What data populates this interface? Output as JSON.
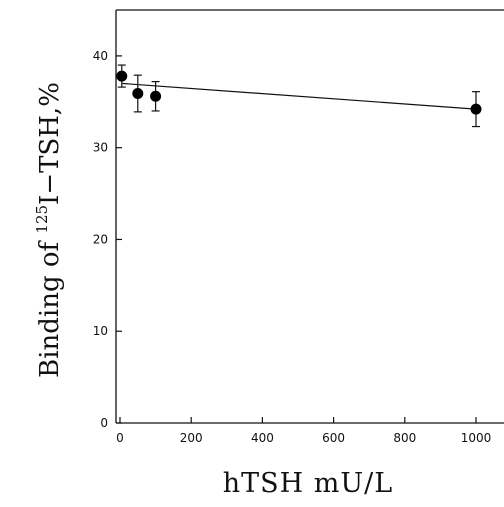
{
  "chart_data": {
    "type": "scatter",
    "title": "",
    "xlabel": "hTSH mU/L",
    "ylabel_prefix": "Binding of ",
    "ylabel_sup": "125",
    "ylabel_main": "I−TSH,%",
    "xlim": [
      0,
      1000
    ],
    "ylim": [
      0,
      45
    ],
    "xticks": [
      0,
      200,
      400,
      600,
      800,
      1000
    ],
    "xtick_labels": [
      "0",
      "200",
      "400",
      "600",
      "800",
      "1000"
    ],
    "yticks": [
      0,
      10,
      20,
      30,
      40
    ],
    "ytick_labels": [
      "0",
      "10",
      "20",
      "30",
      "40"
    ],
    "grid": false,
    "legend": "none",
    "series": [
      {
        "x": [
          5,
          50,
          100,
          1000
        ],
        "y": [
          37.8,
          35.9,
          35.6,
          34.2
        ],
        "err": [
          1.2,
          2.0,
          1.6,
          1.9
        ]
      }
    ],
    "fit_line": {
      "x": [
        5,
        1000
      ],
      "y": [
        37.0,
        34.2
      ]
    }
  }
}
